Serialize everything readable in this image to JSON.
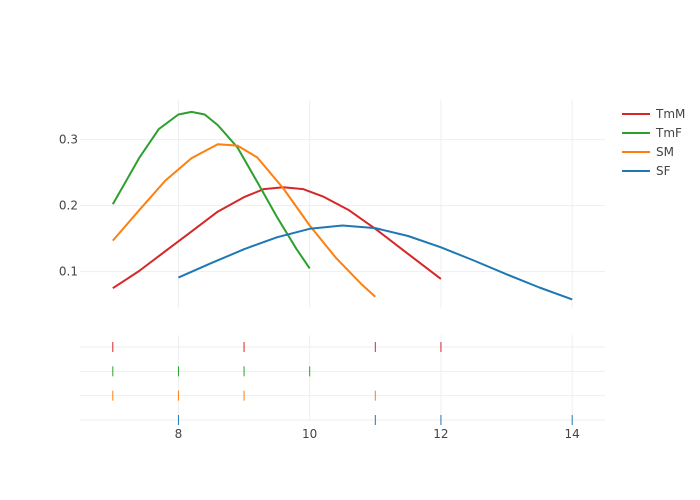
{
  "chart_data": {
    "type": "line",
    "title": "",
    "xlabel": "",
    "ylabel": "",
    "xlim": [
      6.5,
      14.5
    ],
    "ylim": [
      0.045,
      0.36
    ],
    "x_ticks": [
      "8",
      "10",
      "12",
      "14"
    ],
    "y_ticks": [
      "0.1",
      "0.2",
      "0.3"
    ],
    "grid": true,
    "legend_position": "top-right",
    "series": [
      {
        "name": "TmM",
        "color": "#d62728",
        "x": [
          7,
          7.4,
          7.8,
          8.2,
          8.6,
          9,
          9.3,
          9.6,
          9.9,
          10.2,
          10.6,
          11,
          11.5,
          12
        ],
        "y": [
          0.075,
          0.101,
          0.131,
          0.161,
          0.191,
          0.213,
          0.225,
          0.228,
          0.225,
          0.214,
          0.193,
          0.165,
          0.127,
          0.089
        ],
        "rug": [
          7,
          9,
          11,
          12
        ]
      },
      {
        "name": "TmF",
        "color": "#2ca02c",
        "x": [
          7,
          7.4,
          7.7,
          8,
          8.2,
          8.4,
          8.6,
          8.9,
          9.2,
          9.5,
          9.8,
          10
        ],
        "y": [
          0.202,
          0.272,
          0.316,
          0.338,
          0.342,
          0.338,
          0.322,
          0.288,
          0.236,
          0.183,
          0.134,
          0.105
        ],
        "rug": [
          7,
          8,
          9,
          10
        ]
      },
      {
        "name": "SM",
        "color": "#ff7f0e",
        "x": [
          7,
          7.4,
          7.8,
          8.2,
          8.6,
          8.9,
          9.2,
          9.6,
          10,
          10.4,
          10.8,
          11
        ],
        "y": [
          0.147,
          0.193,
          0.238,
          0.272,
          0.293,
          0.291,
          0.273,
          0.226,
          0.17,
          0.121,
          0.08,
          0.062
        ],
        "rug": [
          7,
          8,
          9,
          11
        ]
      },
      {
        "name": "SF",
        "color": "#1f77b4",
        "x": [
          8,
          8.5,
          9,
          9.5,
          10,
          10.5,
          11,
          11.5,
          12,
          12.5,
          13,
          13.5,
          14
        ],
        "y": [
          0.091,
          0.113,
          0.134,
          0.152,
          0.165,
          0.17,
          0.166,
          0.154,
          0.137,
          0.117,
          0.096,
          0.076,
          0.058
        ],
        "rug": [
          8,
          11,
          12,
          14
        ]
      }
    ]
  }
}
